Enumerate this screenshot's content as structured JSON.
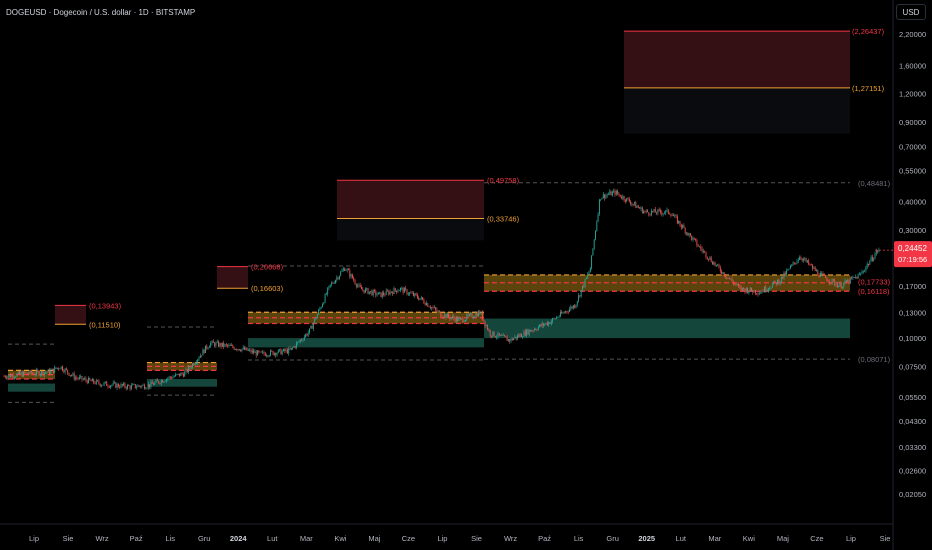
{
  "title": "DOGEUSD · Dogecoin / U.S. dollar · 1D · BITSTAMP",
  "currency": "USD",
  "chart_data": {
    "type": "candlestick",
    "y_scale": "log",
    "y_ticks": [
      "2,20000",
      "1,60000",
      "1,20000",
      "0,90000",
      "0,70000",
      "0,55000",
      "0,40000",
      "0,30000",
      "0,23000",
      "0,17000",
      "0,13000",
      "0,10000",
      "0,07500",
      "0,05500",
      "0,04300",
      "0,03300",
      "0,02600",
      "0,02050"
    ],
    "y_tick_values": [
      2.2,
      1.6,
      1.2,
      0.9,
      0.7,
      0.55,
      0.4,
      0.3,
      0.23,
      0.17,
      0.13,
      0.1,
      0.075,
      0.055,
      0.043,
      0.033,
      0.026,
      0.0205
    ],
    "x_ticks": [
      "Lip",
      "Sie",
      "Wrz",
      "Paź",
      "Lis",
      "Gru",
      "2024",
      "Lut",
      "Mar",
      "Kwi",
      "Maj",
      "Cze",
      "Lip",
      "Sie",
      "Wrz",
      "Paź",
      "Lis",
      "Gru",
      "2025",
      "Lut",
      "Mar",
      "Kwi",
      "Maj",
      "Cze",
      "Lip",
      "Sie"
    ],
    "bold_x_ticks": [
      "2024",
      "2025"
    ],
    "last_price": "0,24452",
    "last_price_value": 0.24452,
    "countdown": "07:19:56",
    "level_labels": [
      {
        "text": "(2,26437)",
        "value": 2.26437,
        "color": "#f23645"
      },
      {
        "text": "(1,27151)",
        "value": 1.27151,
        "color": "#f0a033"
      },
      {
        "text": "(0,49758)",
        "value": 0.49758,
        "color": "#f23645"
      },
      {
        "text": "(0,33746)",
        "value": 0.33746,
        "color": "#f0a033"
      },
      {
        "text": "(0,20668)",
        "value": 0.20668,
        "color": "#f23645"
      },
      {
        "text": "(0,16603)",
        "value": 0.16603,
        "color": "#f0a033"
      },
      {
        "text": "(0,13943)",
        "value": 0.13943,
        "color": "#f23645"
      },
      {
        "text": "(0,11510)",
        "value": 0.1151,
        "color": "#f0a033"
      },
      {
        "text": "(0,48481)",
        "value": 0.48481,
        "color": "#6b6e78"
      },
      {
        "text": "(0,17733)",
        "value": 0.17733,
        "color": "#f23645"
      },
      {
        "text": "(0,16118)",
        "value": 0.16118,
        "color": "#f23645"
      },
      {
        "text": "(0,08071)",
        "value": 0.08071,
        "color": "#6b6e78"
      }
    ],
    "colors": {
      "up": "#26a69a",
      "down": "#ef5350",
      "resistance": "#f23645",
      "support": "#f0a033",
      "demand": "#1e6b5a"
    }
  }
}
